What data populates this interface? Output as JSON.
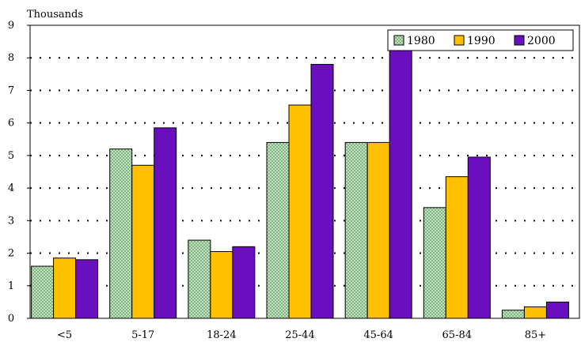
{
  "chart_data": {
    "type": "bar",
    "y_unit": "Thousands",
    "categories": [
      "<5",
      "5-17",
      "18-24",
      "25-44",
      "45-64",
      "65-84",
      "85+"
    ],
    "series": [
      {
        "name": "1980",
        "values": [
          1.6,
          5.2,
          2.4,
          5.4,
          5.4,
          3.4,
          0.25
        ],
        "color": "#c9ecc9",
        "pattern": "crosshatch"
      },
      {
        "name": "1990",
        "values": [
          1.85,
          4.7,
          2.05,
          6.55,
          5.4,
          4.35,
          0.35
        ],
        "color": "#ffc000",
        "pattern": "solid"
      },
      {
        "name": "2000",
        "values": [
          1.8,
          5.85,
          2.2,
          7.8,
          8.3,
          4.95,
          0.5
        ],
        "color": "#6a0fbf",
        "pattern": "solid"
      }
    ],
    "y_ticks": [
      "0",
      "1",
      "2",
      "3",
      "4",
      "5",
      "6",
      "7",
      "8",
      "9"
    ],
    "ylim": [
      0,
      9
    ],
    "grid": "horizontal dotted",
    "legend_position": "top-right"
  }
}
